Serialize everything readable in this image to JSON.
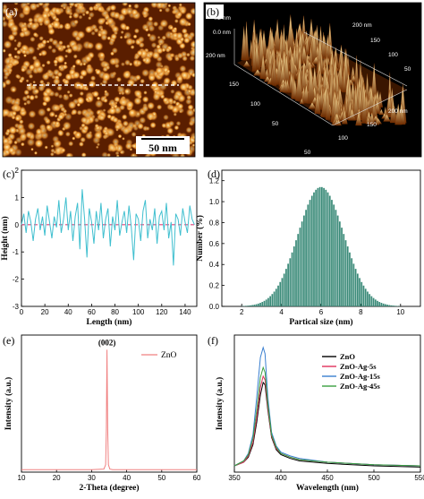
{
  "panels": {
    "a": {
      "label": "(a)",
      "scale_bar": "50 nm"
    },
    "b": {
      "label": "(b)",
      "z_ticks": [
        "4.2 nm",
        "0.0 nm"
      ],
      "axis_ticks_right": [
        "200 nm",
        "150",
        "100",
        "50"
      ],
      "axis_ticks_left": [
        "200 nm",
        "150",
        "100",
        "50"
      ],
      "axis_ticks_bottom": [
        "50",
        "100",
        "150",
        "200 nm"
      ]
    },
    "c": {
      "label": "(c)"
    },
    "d": {
      "label": "(d)"
    },
    "e": {
      "label": "(e)",
      "peak_annotation": "(002)"
    },
    "f": {
      "label": "(f)"
    }
  },
  "colors": {
    "afm_dark": "#5a1e00",
    "afm_mid": "#c8640f",
    "afm_light": "#ffe9a8",
    "profile_line": "#3fbfcf",
    "zero_line": "#e0407a",
    "hist_bar": "#3a8a78",
    "xrd_line": "#f08080",
    "pl_zno": "#000000",
    "pl_5s": "#e0305a",
    "pl_15s": "#3a7fd0",
    "pl_45s": "#3aa040"
  },
  "chart_data": [
    {
      "panel": "c",
      "type": "line",
      "xlabel": "Length (nm)",
      "ylabel": "Height (nm)",
      "xlim": [
        0,
        150
      ],
      "ylim": [
        -3,
        2
      ],
      "xticks": [
        0,
        20,
        40,
        60,
        80,
        100,
        120,
        140
      ],
      "yticks": [
        -3,
        -2,
        -1,
        0,
        1,
        2
      ],
      "grid": false,
      "series": [
        {
          "x": [
            0,
            2,
            4,
            6,
            8,
            10,
            12,
            14,
            16,
            18,
            20,
            22,
            24,
            26,
            28,
            30,
            32,
            34,
            36,
            38,
            40,
            42,
            44,
            46,
            48,
            50,
            52,
            54,
            56,
            58,
            60,
            62,
            64,
            66,
            68,
            70,
            72,
            74,
            76,
            78,
            80,
            82,
            84,
            86,
            88,
            90,
            92,
            94,
            96,
            98,
            100,
            102,
            104,
            106,
            108,
            110,
            112,
            114,
            116,
            118,
            120,
            122,
            124,
            126,
            128,
            130,
            132,
            134,
            136,
            138,
            140,
            142,
            144,
            146,
            148
          ],
          "y": [
            0.0,
            0.4,
            -0.3,
            0.5,
            0.1,
            -0.6,
            0.2,
            0.6,
            -0.2,
            0.3,
            -0.4,
            0.7,
            0.1,
            -0.5,
            0.3,
            -0.1,
            0.9,
            -0.3,
            0.2,
            1.0,
            -0.2,
            0.5,
            -0.6,
            0.3,
            0.8,
            -0.9,
            1.3,
            0.2,
            -1.2,
            0.6,
            0.1,
            -0.7,
            0.5,
            -0.2,
            0.8,
            -0.5,
            0.2,
            0.6,
            -0.8,
            0.3,
            -0.2,
            0.9,
            -0.4,
            0.1,
            0.5,
            -0.3,
            0.7,
            -0.1,
            -1.3,
            0.4,
            0.2,
            -0.6,
            0.5,
            0.9,
            -0.5,
            0.2,
            -0.2,
            0.6,
            -0.7,
            0.3,
            0.5,
            -0.2,
            0.8,
            -0.5,
            0.1,
            -1.5,
            0.4,
            0.2,
            -0.4,
            0.6,
            0.1,
            -0.3,
            0.7,
            0.2,
            0.0
          ]
        }
      ],
      "reference_y": 0
    },
    {
      "panel": "d",
      "type": "bar",
      "xlabel": "Partical size (nm)",
      "ylabel": "Number (%)",
      "xlim": [
        1,
        11
      ],
      "ylim": [
        0,
        1.3
      ],
      "xticks": [
        2,
        4,
        6,
        8,
        10
      ],
      "yticks": [
        0,
        0.2,
        0.4,
        0.6,
        0.8,
        1.0,
        1.2
      ],
      "grid": false,
      "distribution": {
        "shape": "gaussian",
        "mean": 6.0,
        "sd": 1.15,
        "peak": 1.14,
        "from": 2.0,
        "to": 10.0,
        "bins": 80
      }
    },
    {
      "panel": "e",
      "type": "line",
      "xlabel": "2-Theta (degree)",
      "ylabel": "Intensity (a.u.)",
      "xlim": [
        10,
        60
      ],
      "xticks": [
        10,
        20,
        30,
        40,
        50,
        60
      ],
      "yticks": [],
      "grid": false,
      "legend": "top-right",
      "series": [
        {
          "name": "ZnO",
          "x": [
            10,
            20,
            30,
            33.5,
            34.0,
            34.2,
            34.4,
            34.6,
            34.8,
            35.2,
            36,
            40,
            50,
            60
          ],
          "y": [
            0.02,
            0.02,
            0.02,
            0.025,
            0.06,
            0.35,
            1.0,
            0.35,
            0.06,
            0.025,
            0.02,
            0.02,
            0.02,
            0.02
          ]
        }
      ]
    },
    {
      "panel": "f",
      "type": "line",
      "xlabel": "Wavelength (nm)",
      "ylabel": "Intensity (a.u.)",
      "xlim": [
        350,
        550
      ],
      "xticks": [
        350,
        400,
        450,
        500,
        550
      ],
      "yticks": [],
      "grid": false,
      "legend": "top-right",
      "series": [
        {
          "name": "ZnO",
          "x": [
            350,
            360,
            365,
            370,
            374,
            378,
            381,
            383,
            386,
            390,
            395,
            400,
            410,
            420,
            450,
            500,
            550
          ],
          "y": [
            0.05,
            0.08,
            0.12,
            0.22,
            0.4,
            0.62,
            0.72,
            0.7,
            0.5,
            0.28,
            0.18,
            0.14,
            0.11,
            0.09,
            0.07,
            0.05,
            0.04
          ]
        },
        {
          "name": "ZnO-Ag-5s",
          "x": [
            350,
            360,
            365,
            370,
            374,
            378,
            381,
            383,
            386,
            390,
            395,
            400,
            410,
            420,
            450,
            500,
            550
          ],
          "y": [
            0.05,
            0.08,
            0.13,
            0.24,
            0.44,
            0.68,
            0.77,
            0.74,
            0.52,
            0.29,
            0.19,
            0.15,
            0.12,
            0.1,
            0.08,
            0.06,
            0.05
          ]
        },
        {
          "name": "ZnO-Ag-15s",
          "x": [
            350,
            360,
            365,
            370,
            374,
            378,
            381,
            383,
            386,
            390,
            395,
            400,
            410,
            420,
            450,
            500,
            550
          ],
          "y": [
            0.05,
            0.09,
            0.15,
            0.3,
            0.6,
            0.92,
            1.0,
            0.95,
            0.6,
            0.32,
            0.21,
            0.16,
            0.13,
            0.11,
            0.08,
            0.06,
            0.05
          ]
        },
        {
          "name": "ZnO-Ag-45s",
          "x": [
            350,
            360,
            365,
            370,
            374,
            378,
            381,
            383,
            386,
            390,
            395,
            400,
            410,
            420,
            450,
            500,
            550
          ],
          "y": [
            0.05,
            0.09,
            0.14,
            0.27,
            0.5,
            0.76,
            0.84,
            0.8,
            0.55,
            0.3,
            0.2,
            0.15,
            0.12,
            0.1,
            0.08,
            0.06,
            0.05
          ]
        }
      ]
    }
  ]
}
